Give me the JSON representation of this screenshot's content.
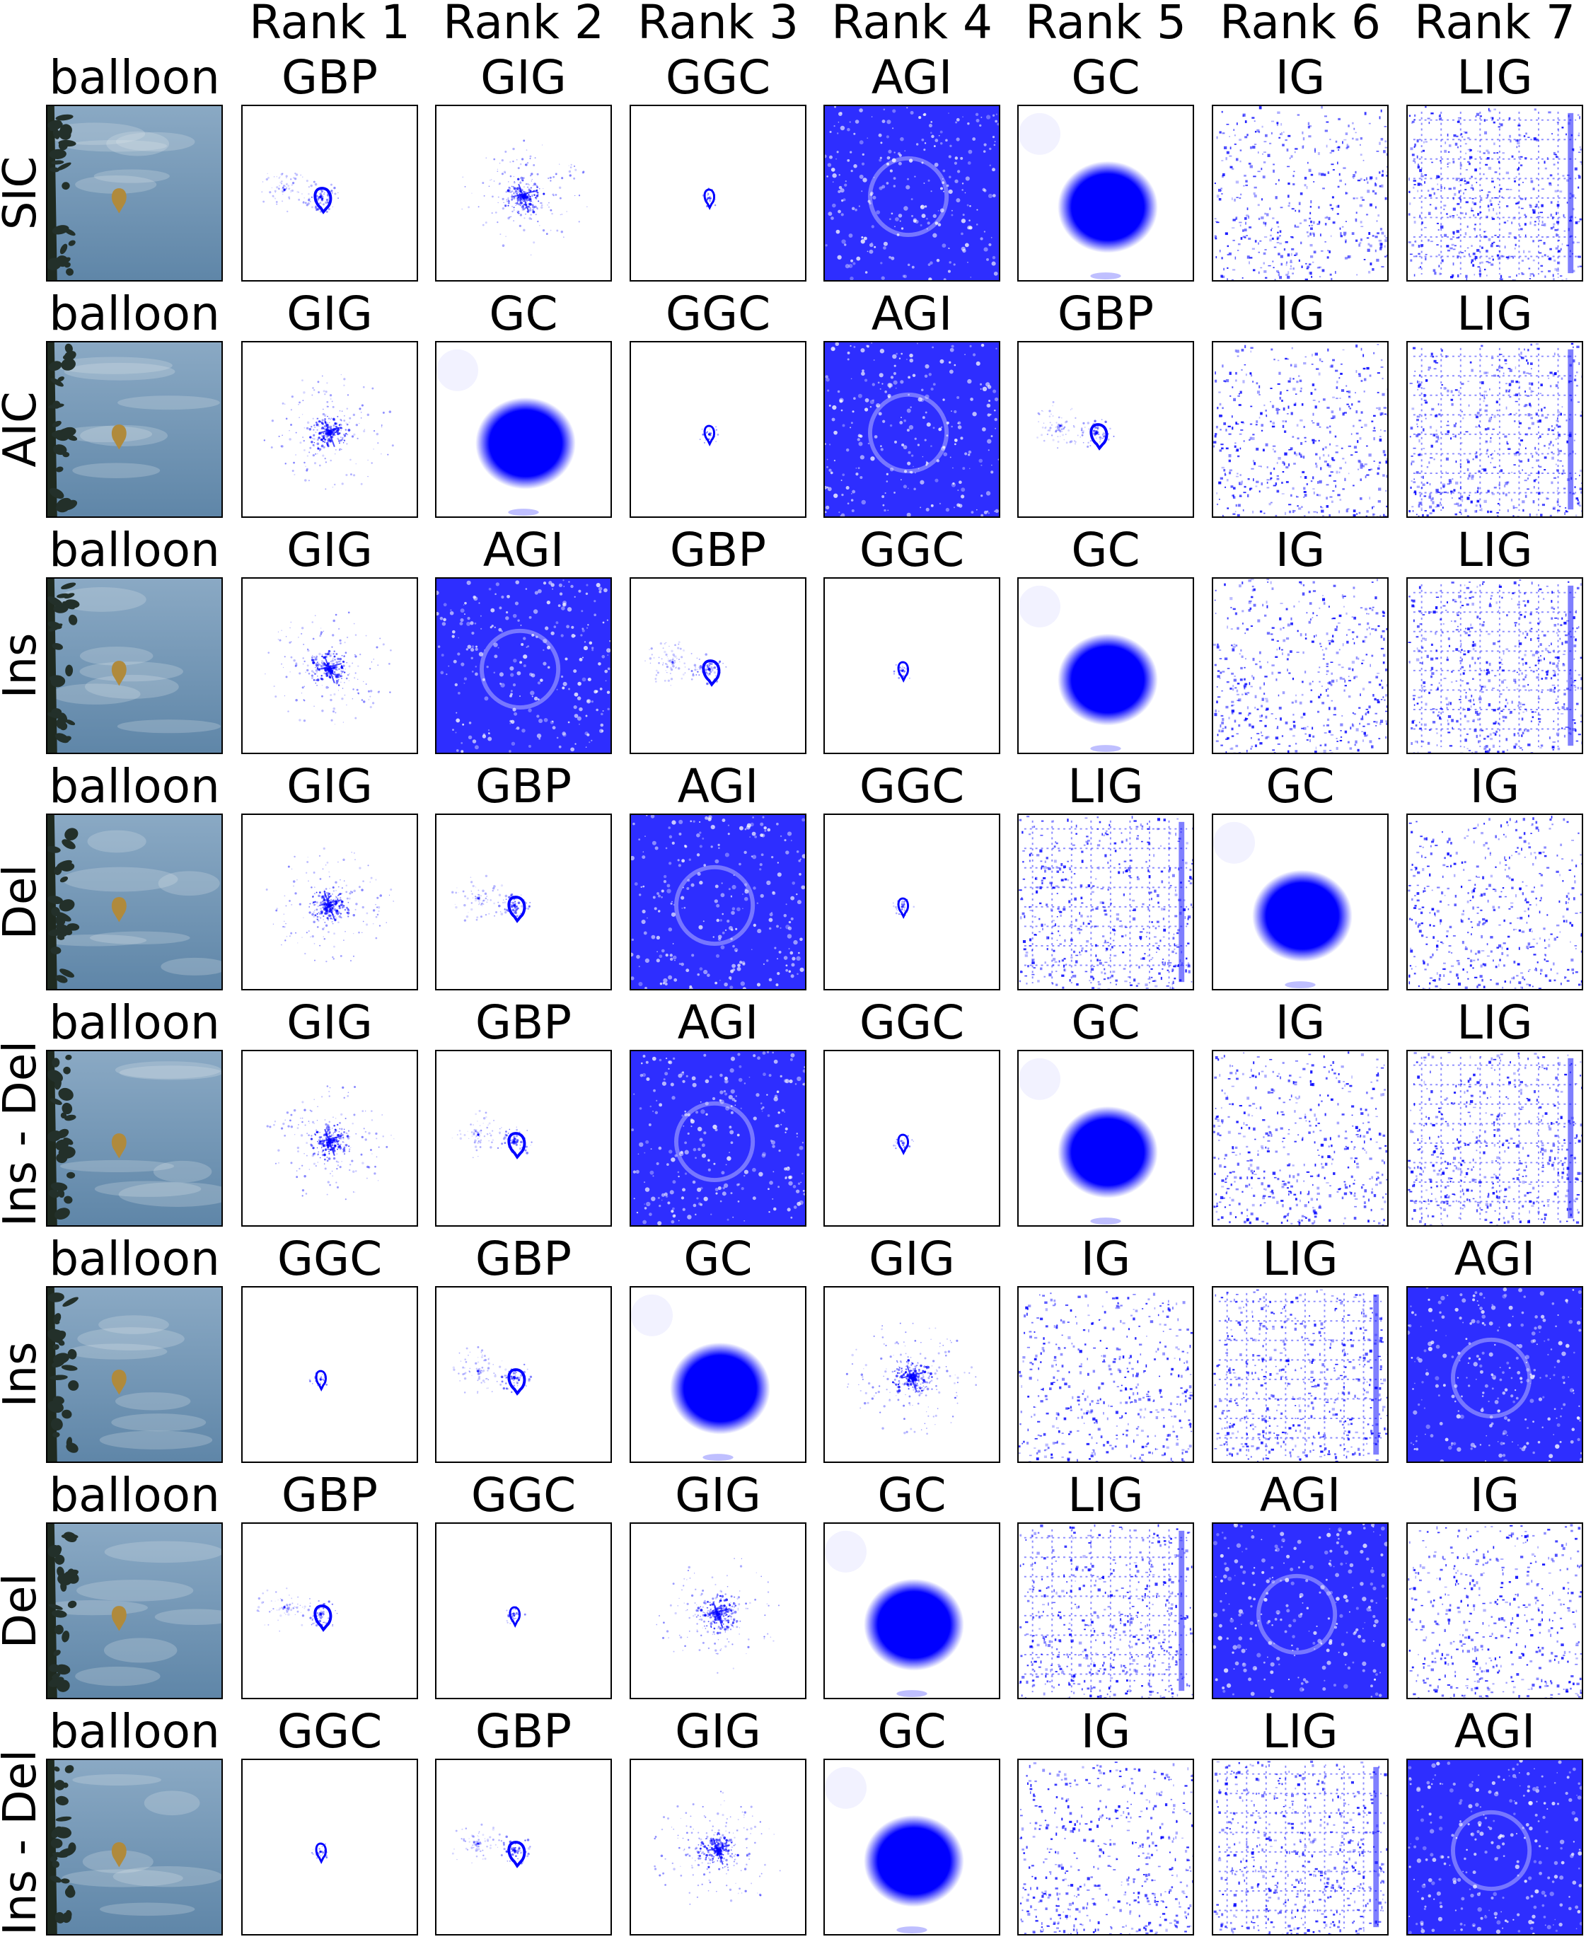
{
  "column_headers": [
    "Rank 1",
    "Rank 2",
    "Rank 3",
    "Rank 4",
    "Rank 5",
    "Rank 6",
    "Rank 7"
  ],
  "rows": [
    {
      "metric": "SIC",
      "image_label": "balloon",
      "ranking": [
        "GBP",
        "GIG",
        "GGC",
        "AGI",
        "GC",
        "IG",
        "LIG"
      ]
    },
    {
      "metric": "AIC",
      "image_label": "balloon",
      "ranking": [
        "GIG",
        "GC",
        "GGC",
        "AGI",
        "GBP",
        "IG",
        "LIG"
      ]
    },
    {
      "metric": "Ins",
      "image_label": "balloon",
      "ranking": [
        "GIG",
        "AGI",
        "GBP",
        "GGC",
        "GC",
        "IG",
        "LIG"
      ]
    },
    {
      "metric": "Del",
      "image_label": "balloon",
      "ranking": [
        "GIG",
        "GBP",
        "AGI",
        "GGC",
        "LIG",
        "GC",
        "IG"
      ]
    },
    {
      "metric": "Ins - Del",
      "image_label": "balloon",
      "ranking": [
        "GIG",
        "GBP",
        "AGI",
        "GGC",
        "GC",
        "IG",
        "LIG"
      ]
    },
    {
      "metric": "Ins",
      "image_label": "balloon",
      "ranking": [
        "GGC",
        "GBP",
        "GC",
        "GIG",
        "IG",
        "LIG",
        "AGI"
      ]
    },
    {
      "metric": "Del",
      "image_label": "balloon",
      "ranking": [
        "GBP",
        "GGC",
        "GIG",
        "GC",
        "LIG",
        "AGI",
        "IG"
      ]
    },
    {
      "metric": "Ins - Del",
      "image_label": "balloon",
      "ranking": [
        "GGC",
        "GBP",
        "GIG",
        "GC",
        "IG",
        "LIG",
        "AGI"
      ]
    }
  ],
  "colors": {
    "saliency": "#0000ff",
    "background": "#ffffff",
    "sky_top": "#8aa9c4",
    "sky_bottom": "#5f86a8",
    "balloon": "#b08a3c"
  }
}
